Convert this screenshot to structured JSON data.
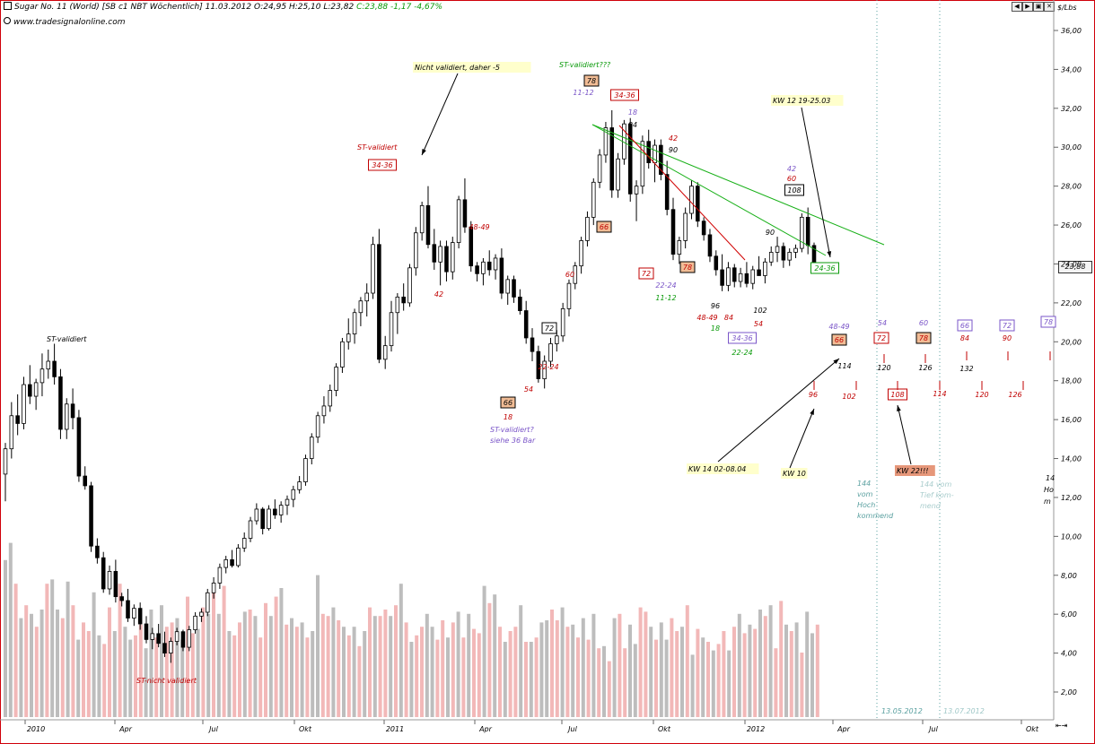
{
  "header": {
    "title": "Sugar No. 11 (World) [SB c1 NBT Wöchentlich] 11.03.2012",
    "open": "O:24,95",
    "high": "H:25,10",
    "low": "L:23,82",
    "close_change": "C:23,88 -1,17 -4,67%",
    "source": "www.tradesignalonline.com",
    "unit": "$/Lbs",
    "last_price": "23,88"
  },
  "colors": {
    "up": "#ffffff",
    "down": "#000000",
    "vol_grey": "#bdbdbd",
    "vol_pink": "#f2b8b8",
    "red": "#c00000",
    "green": "#0a9a0a",
    "purple": "#7a55c8",
    "teal": "#5aa0a0",
    "accent_orange": "#f1bc95",
    "frame_red": "#d0000a"
  },
  "chart_data": {
    "type": "candlestick",
    "y_ticks": [
      "2,00",
      "4,00",
      "6,00",
      "8,00",
      "10,00",
      "12,00",
      "14,00",
      "16,00",
      "18,00",
      "20,00",
      "22,00",
      "24,00",
      "26,00",
      "28,00",
      "30,00",
      "32,00",
      "34,00",
      "36,00"
    ],
    "ylim": [
      0,
      37
    ],
    "x_labels": [
      "2010",
      "Apr",
      "Jul",
      "Okt",
      "2011",
      "Apr",
      "Jul",
      "Okt",
      "2012",
      "Apr",
      "Jul",
      "Okt"
    ],
    "markers": {
      "today_line": "13.05.2012",
      "future_line": "13.07.2012"
    },
    "prices": [
      [
        13.2,
        14.8,
        11.8,
        14.5
      ],
      [
        14.5,
        16.9,
        14.0,
        16.2
      ],
      [
        16.2,
        17.3,
        15.2,
        15.8
      ],
      [
        15.8,
        18.2,
        15.5,
        17.8
      ],
      [
        17.8,
        18.8,
        16.8,
        17.2
      ],
      [
        17.2,
        18.1,
        16.5,
        17.9
      ],
      [
        17.9,
        19.4,
        17.2,
        18.6
      ],
      [
        18.6,
        19.6,
        18.1,
        19.0
      ],
      [
        19.0,
        19.9,
        17.8,
        18.2
      ],
      [
        18.2,
        18.6,
        15.0,
        15.5
      ],
      [
        15.5,
        17.1,
        15.0,
        16.8
      ],
      [
        16.8,
        17.6,
        15.5,
        16.1
      ],
      [
        16.1,
        16.5,
        12.8,
        13.1
      ],
      [
        13.1,
        13.6,
        12.4,
        12.6
      ],
      [
        12.6,
        12.8,
        9.2,
        9.5
      ],
      [
        9.5,
        9.9,
        8.6,
        8.9
      ],
      [
        8.9,
        9.2,
        7.1,
        7.3
      ],
      [
        7.3,
        8.5,
        7.0,
        8.2
      ],
      [
        8.2,
        8.8,
        6.6,
        6.9
      ],
      [
        6.9,
        7.1,
        6.4,
        6.7
      ],
      [
        6.7,
        7.3,
        5.6,
        5.8
      ],
      [
        5.8,
        6.5,
        5.4,
        6.3
      ],
      [
        6.3,
        6.6,
        5.2,
        5.5
      ],
      [
        5.5,
        5.9,
        4.5,
        4.7
      ],
      [
        4.7,
        5.3,
        4.2,
        5.0
      ],
      [
        5.0,
        5.5,
        4.3,
        4.5
      ],
      [
        4.5,
        5.1,
        3.8,
        4.0
      ],
      [
        4.0,
        4.8,
        3.5,
        4.6
      ],
      [
        4.6,
        5.3,
        4.4,
        5.1
      ],
      [
        5.1,
        5.2,
        4.1,
        4.3
      ],
      [
        4.3,
        5.4,
        4.1,
        5.2
      ],
      [
        5.2,
        6.1,
        5.0,
        5.9
      ],
      [
        5.9,
        6.3,
        5.6,
        6.1
      ],
      [
        6.1,
        7.3,
        5.9,
        7.1
      ],
      [
        7.1,
        7.9,
        6.8,
        7.6
      ],
      [
        7.6,
        8.6,
        7.3,
        8.4
      ],
      [
        8.4,
        9.0,
        8.1,
        8.8
      ],
      [
        8.8,
        9.3,
        8.4,
        8.5
      ],
      [
        8.5,
        9.6,
        8.4,
        9.4
      ],
      [
        9.4,
        10.2,
        9.2,
        9.9
      ],
      [
        9.9,
        11.0,
        9.7,
        10.8
      ],
      [
        10.8,
        11.7,
        10.6,
        11.4
      ],
      [
        11.4,
        11.5,
        10.1,
        10.4
      ],
      [
        10.4,
        11.6,
        10.3,
        11.4
      ],
      [
        11.4,
        11.9,
        10.9,
        11.1
      ],
      [
        11.1,
        11.8,
        10.7,
        11.6
      ],
      [
        11.6,
        12.1,
        11.1,
        11.9
      ],
      [
        11.9,
        12.6,
        11.5,
        12.4
      ],
      [
        12.4,
        13.1,
        12.2,
        12.8
      ],
      [
        12.8,
        14.2,
        12.6,
        14.0
      ],
      [
        14.0,
        15.3,
        13.7,
        15.1
      ],
      [
        15.1,
        16.4,
        14.8,
        16.2
      ],
      [
        16.2,
        17.2,
        15.8,
        16.7
      ],
      [
        16.7,
        17.8,
        16.4,
        17.5
      ],
      [
        17.5,
        18.9,
        17.2,
        18.7
      ],
      [
        18.7,
        20.2,
        18.4,
        20.0
      ],
      [
        20.0,
        21.2,
        19.6,
        20.4
      ],
      [
        20.4,
        21.7,
        19.9,
        21.5
      ],
      [
        21.5,
        22.3,
        20.8,
        22.1
      ],
      [
        22.1,
        23.0,
        21.3,
        22.5
      ],
      [
        22.5,
        25.4,
        22.2,
        25.0
      ],
      [
        25.0,
        25.8,
        18.9,
        19.1
      ],
      [
        19.1,
        20.3,
        18.6,
        19.8
      ],
      [
        19.8,
        22.1,
        19.5,
        21.5
      ],
      [
        21.5,
        22.5,
        20.4,
        22.3
      ],
      [
        22.3,
        23.0,
        21.6,
        22.0
      ],
      [
        22.0,
        24.0,
        21.8,
        23.8
      ],
      [
        23.8,
        25.9,
        23.4,
        25.6
      ],
      [
        25.6,
        27.2,
        25.2,
        27.0
      ],
      [
        27.0,
        28.0,
        24.8,
        25.0
      ],
      [
        25.0,
        25.8,
        23.7,
        24.1
      ],
      [
        24.1,
        25.2,
        22.9,
        24.9
      ],
      [
        24.9,
        25.2,
        23.1,
        23.6
      ],
      [
        23.6,
        25.4,
        23.2,
        25.1
      ],
      [
        25.1,
        27.5,
        24.8,
        27.3
      ],
      [
        27.3,
        28.4,
        25.6,
        25.9
      ],
      [
        25.9,
        26.2,
        23.6,
        23.9
      ],
      [
        23.9,
        24.1,
        23.1,
        23.5
      ],
      [
        23.5,
        24.3,
        22.9,
        24.1
      ],
      [
        24.1,
        24.7,
        23.4,
        23.7
      ],
      [
        23.7,
        24.5,
        23.2,
        24.3
      ],
      [
        24.3,
        24.8,
        22.2,
        22.5
      ],
      [
        22.5,
        23.4,
        21.9,
        23.2
      ],
      [
        23.2,
        23.4,
        22.0,
        22.3
      ],
      [
        22.3,
        22.7,
        21.4,
        21.6
      ],
      [
        21.6,
        22.1,
        19.9,
        20.2
      ],
      [
        20.2,
        20.7,
        19.0,
        19.5
      ],
      [
        19.5,
        19.8,
        17.9,
        18.1
      ],
      [
        18.1,
        19.3,
        17.6,
        19.0
      ],
      [
        19.0,
        20.2,
        18.7,
        19.9
      ],
      [
        19.9,
        20.6,
        19.5,
        20.3
      ],
      [
        20.3,
        22.0,
        20.0,
        21.7
      ],
      [
        21.7,
        23.2,
        21.3,
        23.0
      ],
      [
        23.0,
        24.1,
        22.7,
        23.9
      ],
      [
        23.9,
        25.4,
        23.5,
        25.2
      ],
      [
        25.2,
        26.7,
        24.9,
        26.4
      ],
      [
        26.4,
        28.4,
        26.0,
        28.2
      ],
      [
        28.2,
        29.9,
        27.9,
        29.6
      ],
      [
        29.6,
        31.3,
        29.2,
        31.0
      ],
      [
        31.0,
        31.9,
        27.4,
        27.8
      ],
      [
        27.8,
        29.7,
        27.4,
        29.4
      ],
      [
        29.4,
        31.4,
        29.1,
        31.2
      ],
      [
        31.2,
        31.5,
        27.2,
        27.6
      ],
      [
        27.6,
        28.3,
        26.2,
        28.0
      ],
      [
        28.0,
        30.6,
        27.6,
        30.3
      ],
      [
        30.3,
        30.9,
        28.9,
        29.2
      ],
      [
        29.2,
        30.4,
        28.2,
        30.1
      ],
      [
        30.1,
        30.4,
        28.3,
        28.6
      ],
      [
        28.6,
        29.3,
        26.5,
        26.8
      ],
      [
        26.8,
        27.4,
        24.2,
        24.5
      ],
      [
        24.5,
        25.4,
        24.0,
        25.2
      ],
      [
        25.2,
        26.9,
        24.8,
        26.6
      ],
      [
        26.6,
        28.3,
        26.3,
        28.0
      ],
      [
        28.0,
        28.2,
        25.9,
        26.2
      ],
      [
        26.2,
        26.4,
        25.2,
        25.5
      ],
      [
        25.5,
        25.8,
        24.1,
        24.4
      ],
      [
        24.4,
        24.7,
        23.4,
        23.7
      ],
      [
        23.7,
        24.5,
        22.6,
        22.9
      ],
      [
        22.9,
        24.1,
        22.6,
        23.8
      ],
      [
        23.8,
        24.0,
        22.8,
        23.1
      ],
      [
        23.1,
        23.8,
        22.8,
        23.5
      ],
      [
        23.5,
        24.1,
        22.8,
        23.0
      ],
      [
        23.0,
        23.9,
        22.7,
        23.7
      ],
      [
        23.7,
        24.4,
        23.4,
        23.4
      ],
      [
        23.4,
        24.3,
        23.0,
        24.1
      ],
      [
        24.1,
        24.9,
        23.9,
        24.6
      ],
      [
        24.6,
        25.4,
        24.1,
        24.9
      ],
      [
        24.9,
        25.1,
        23.8,
        24.2
      ],
      [
        24.2,
        24.8,
        23.9,
        24.6
      ],
      [
        24.6,
        25.0,
        24.3,
        24.8
      ],
      [
        24.8,
        26.6,
        24.6,
        26.4
      ],
      [
        26.4,
        26.9,
        24.5,
        24.95
      ],
      [
        24.95,
        25.1,
        23.82,
        23.88
      ]
    ],
    "volumes": [
      7.3,
      8.1,
      6.2,
      4.6,
      5.2,
      4.8,
      4.2,
      5.0,
      6.2,
      6.4,
      5.0,
      4.6,
      6.3,
      5.2,
      3.6,
      4.4,
      4.0,
      5.8,
      3.8,
      3.4,
      5.1,
      4.0,
      6.2,
      4.2,
      3.6,
      3.8,
      4.3,
      3.2,
      5.0,
      3.7,
      5.2,
      4.2,
      4.4,
      4.6,
      3.6,
      5.6,
      3.9,
      4.1,
      5.1,
      4.8,
      6.1,
      4.8,
      6.1,
      4.0,
      3.8,
      4.4,
      4.9,
      5.0,
      4.7,
      3.7,
      5.3,
      4.7,
      5.6,
      6.0,
      4.3,
      4.6,
      4.2,
      4.4,
      3.7,
      4.0,
      6.6,
      4.8,
      4.7,
      5.1,
      4.5,
      4.2,
      3.8,
      4.2,
      3.3,
      4.0,
      5.1,
      4.7,
      4.7,
      5.0,
      4.7,
      5.2,
      6.2,
      4.4,
      3.5,
      3.8,
      4.2,
      4.8,
      4.2,
      3.6,
      4.5,
      3.7,
      4.4,
      4.9,
      3.7,
      4.8,
      4.1,
      3.9,
      6.1,
      5.3,
      5.7,
      4.2,
      3.5,
      4.0,
      4.2,
      5.2,
      3.5,
      3.5,
      3.7,
      4.4,
      4.5,
      5.0,
      4.5,
      5.1,
      4.2,
      4.3,
      3.7,
      4.6,
      3.6,
      4.8,
      3.2,
      3.3,
      2.6,
      4.6,
      4.8,
      3.2,
      4.3,
      3.4,
      5.1,
      4.9,
      4.2,
      3.6,
      4.4,
      3.6,
      4.6,
      4.0,
      4.2,
      5.2,
      2.9,
      4.1,
      3.7,
      3.5,
      3.1,
      3.4,
      4.0,
      3.1,
      4.2,
      4.8,
      3.9,
      4.3,
      4.1,
      5.0,
      4.7,
      5.2,
      3.2,
      5.4,
      4.3,
      4.0,
      4.4,
      3.0,
      4.9,
      3.9,
      4.3,
      4.4,
      4.7,
      4.8
    ],
    "volume_up_flags": [
      0,
      0,
      1,
      0,
      1,
      0,
      1,
      0,
      1,
      0,
      0,
      1,
      0,
      1,
      0,
      1,
      1,
      0,
      0,
      1,
      1,
      0,
      1,
      0,
      0,
      1,
      1,
      0,
      0,
      1,
      0,
      1,
      1,
      0,
      0,
      1,
      1,
      0,
      1,
      0,
      1,
      0,
      1,
      0,
      1,
      1,
      0,
      1,
      0,
      1,
      1,
      0,
      1,
      0,
      1,
      0,
      1,
      0,
      1,
      0,
      0,
      1,
      1,
      0,
      1,
      0,
      1,
      0,
      1,
      0,
      1,
      0,
      1,
      1,
      0,
      1,
      0,
      1,
      0,
      1,
      1,
      0,
      0,
      1,
      1,
      0,
      1,
      0,
      1,
      0,
      1,
      1,
      0,
      1,
      0,
      1,
      0,
      1,
      1,
      0,
      1,
      0,
      1,
      0,
      0,
      1,
      1,
      0,
      1,
      0,
      1,
      0,
      1,
      0,
      1,
      0,
      1,
      0,
      1,
      1,
      0,
      0,
      1,
      1,
      0,
      1,
      0,
      0,
      1,
      1,
      0,
      1,
      0,
      1,
      0,
      1,
      0,
      1,
      1,
      0,
      1,
      0,
      1,
      0,
      1,
      0,
      1,
      0,
      1,
      1,
      0,
      1,
      0,
      1,
      0,
      0,
      1,
      0,
      1,
      1,
      0,
      1,
      0,
      0,
      1,
      0,
      1,
      0,
      1,
      0
    ],
    "annotations": {
      "texts": [
        {
          "t": "Nicht validiert, daher -5",
          "c": "k",
          "bg": "y"
        },
        {
          "t": "ST-validiert???",
          "c": "g"
        },
        {
          "t": "ST-validiert",
          "c": "r"
        },
        {
          "t": "KW 12  19-25.03",
          "c": "k",
          "bg": "y"
        },
        {
          "t": "ST-validiert",
          "c": "k"
        },
        {
          "t": "ST-nicht validiert",
          "c": "r"
        },
        {
          "t": "ST-validiert?",
          "c": "p"
        },
        {
          "t": "siehe 36 Bar",
          "c": "p"
        },
        {
          "t": "KW 14  02-08.04",
          "c": "k",
          "bg": "y"
        },
        {
          "t": "KW 10",
          "c": "k",
          "bg": "y"
        },
        {
          "t": "KW 22!!!",
          "c": "k",
          "bg": "o"
        },
        {
          "t": "144",
          "c": "t"
        },
        {
          "t": "vom",
          "c": "t"
        },
        {
          "t": "Hoch",
          "c": "t"
        },
        {
          "t": "kommend",
          "c": "t"
        },
        {
          "t": "144 vom",
          "c": "t2"
        },
        {
          "t": "Tief kom-",
          "c": "t2"
        },
        {
          "t": "mend",
          "c": "t2"
        },
        {
          "t": "14",
          "c": "k"
        },
        {
          "t": "Ho",
          "c": "k"
        },
        {
          "t": "m",
          "c": "k"
        }
      ],
      "numbers": [
        "34-36",
        "78",
        "11-12",
        "34-36",
        "18",
        "84",
        "42",
        "90",
        "42",
        "60",
        "108",
        "90",
        "24-36",
        "66",
        "72",
        "78",
        "22-24",
        "11-12",
        "96",
        "48-49",
        "84",
        "18",
        "54",
        "102",
        "34-36",
        "22-24",
        "48-49",
        "42",
        "60",
        "72",
        "66",
        "18",
        "54",
        "22-24",
        "ST",
        "48-49",
        "54",
        "60",
        "66",
        "72",
        "78",
        "66",
        "72",
        "78",
        "84",
        "90",
        "96",
        "114",
        "120",
        "126",
        "132",
        "96",
        "102",
        "108",
        "114",
        "120",
        "126"
      ]
    }
  }
}
